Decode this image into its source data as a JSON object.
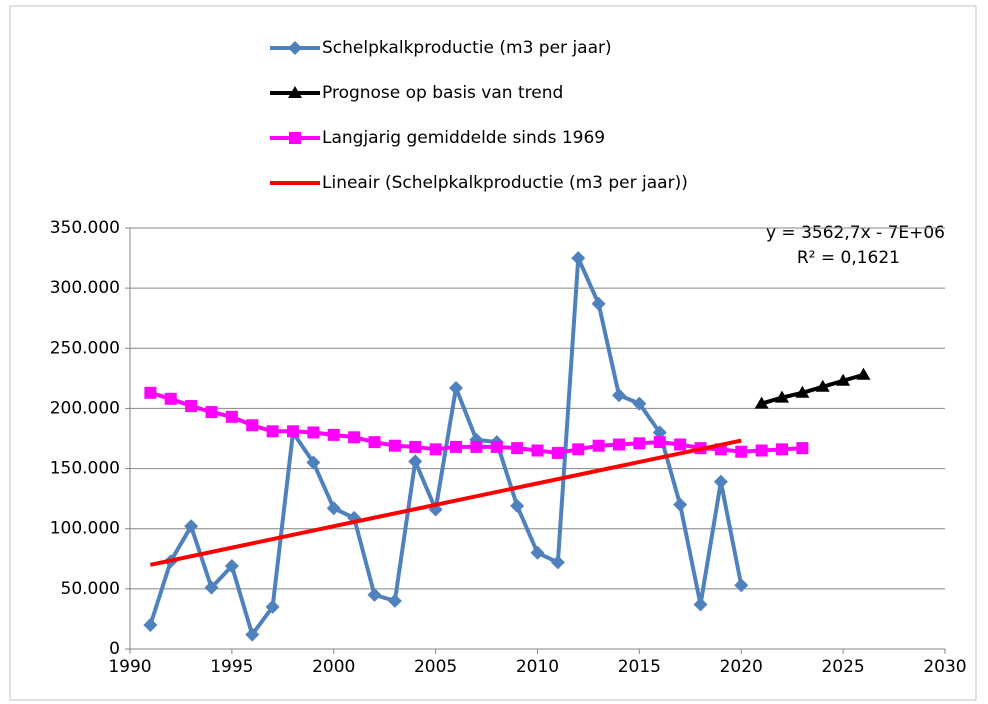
{
  "chart_data": {
    "type": "line",
    "xlim": [
      1990,
      2030
    ],
    "xticks": [
      1990,
      1995,
      2000,
      2005,
      2010,
      2015,
      2020,
      2025,
      2030
    ],
    "ylim": [
      0,
      350000
    ],
    "yticks": [
      0,
      {
        "value": 50000,
        "label": "50.000"
      },
      {
        "value": 100000,
        "label": "100.000"
      },
      {
        "value": 150000,
        "label": "150.000"
      },
      {
        "value": 200000,
        "label": "200.000"
      },
      {
        "value": 250000,
        "label": "250.000"
      },
      {
        "value": 300000,
        "label": "300.000"
      },
      {
        "value": 350000,
        "label": "350.000"
      }
    ],
    "grid": true,
    "legend": "top",
    "series": [
      {
        "name": "Schelpkalkproductie (m3 per jaar)",
        "color": "#4f81bd",
        "marker": "diamond",
        "x": [
          1991,
          1992,
          1993,
          1994,
          1995,
          1996,
          1997,
          1998,
          1999,
          2000,
          2001,
          2002,
          2003,
          2004,
          2005,
          2006,
          2007,
          2008,
          2009,
          2010,
          2011,
          2012,
          2013,
          2014,
          2015,
          2016,
          2017,
          2018,
          2019,
          2020
        ],
        "values": [
          20000,
          73000,
          102000,
          51000,
          69000,
          12000,
          35000,
          180000,
          155000,
          117000,
          109000,
          45000,
          40000,
          156000,
          116000,
          217000,
          174000,
          172000,
          119000,
          80000,
          72000,
          325000,
          287000,
          211000,
          204000,
          180000,
          120000,
          37000,
          139000,
          53000
        ]
      },
      {
        "name": "Prognose op basis van trend",
        "color": "#000000",
        "marker": "triangle",
        "x": [
          2021,
          2022,
          2023,
          2024,
          2025,
          2026
        ],
        "values": [
          204000,
          209000,
          213000,
          218000,
          223000,
          228000
        ]
      },
      {
        "name": "Langjarig gemiddelde sinds 1969",
        "color": "#ff00ff",
        "marker": "square",
        "x": [
          1991,
          1992,
          1993,
          1994,
          1995,
          1996,
          1997,
          1998,
          1999,
          2000,
          2001,
          2002,
          2003,
          2004,
          2005,
          2006,
          2007,
          2008,
          2009,
          2010,
          2011,
          2012,
          2013,
          2014,
          2015,
          2016,
          2017,
          2018,
          2019,
          2020,
          2021,
          2022,
          2023
        ],
        "values": [
          213000,
          208000,
          202000,
          197000,
          193000,
          186000,
          181000,
          181000,
          180000,
          178000,
          176000,
          172000,
          169000,
          168000,
          166000,
          168000,
          168000,
          168000,
          167000,
          165000,
          163000,
          166000,
          169000,
          170000,
          171000,
          172000,
          170000,
          167000,
          166000,
          164000,
          165000,
          166000,
          167000
        ]
      },
      {
        "name": "Lineair (Schelpkalkproductie (m3 per jaar))",
        "color": "#ff0000",
        "marker": "none",
        "x": [
          1991,
          2020
        ],
        "values": [
          70000,
          173300
        ]
      }
    ],
    "annotations": [
      "y = 3562,7x - 7E+06",
      "R² = 0,1621"
    ]
  }
}
